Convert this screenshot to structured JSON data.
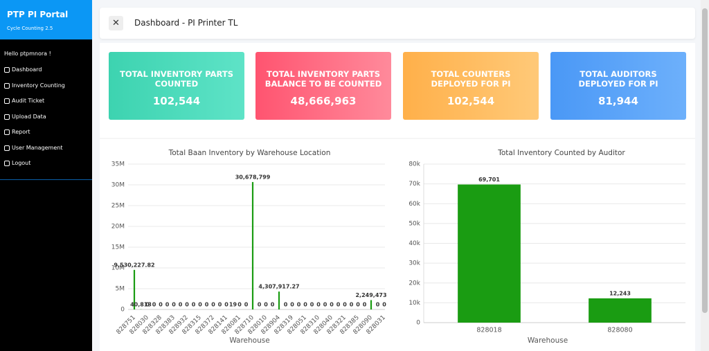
{
  "sidebar": {
    "brand": "PTP PI Portal",
    "version": "Cycle Counting 2.5",
    "greeting": "Hello ptpmnora !",
    "menu": [
      "Dashboard",
      "Inventory Counting",
      "Audit Ticket",
      "Upload Data",
      "Report",
      "User Management",
      "Logout"
    ]
  },
  "header": {
    "title": "Dashboard - PI Printer TL"
  },
  "cards": [
    {
      "label": "TOTAL INVENTORY PARTS COUNTED",
      "value": "102,544"
    },
    {
      "label": "TOTAL INVENTORY PARTS BALANCE TO BE COUNTED",
      "value": "48,666,963"
    },
    {
      "label": "TOTAL COUNTERS DEPLOYED FOR PI",
      "value": "102,544"
    },
    {
      "label": "TOTAL AUDITORS DEPLOYED FOR PI",
      "value": "81,944"
    }
  ],
  "chart_data": [
    {
      "type": "bar",
      "title": "Total Baan Inventory by Warehouse Location",
      "x_label": "Warehouse",
      "color": "#1a9c12",
      "grid": true,
      "categories": [
        "828751",
        null,
        "828030",
        null,
        "828328",
        null,
        "828383",
        null,
        "828932",
        null,
        "828315",
        null,
        "828372",
        null,
        "828141",
        null,
        "828081",
        null,
        "828710",
        null,
        "828010",
        null,
        "828904",
        null,
        "828319",
        null,
        "828051",
        null,
        "828310",
        null,
        "828040",
        null,
        "828321",
        null,
        "828385",
        null,
        "828090",
        null,
        "828031"
      ],
      "values": [
        9530227.82,
        40813,
        0,
        0,
        0,
        0,
        0,
        0,
        0,
        0,
        0,
        0,
        0,
        0,
        0,
        19,
        0,
        0,
        30678799,
        0,
        0,
        0,
        4307917.27,
        0,
        0,
        0,
        0,
        0,
        0,
        0,
        0,
        0,
        0,
        0,
        0,
        0,
        2249473,
        0,
        0
      ],
      "value_labels": [
        "9,530,227.82",
        "40,813",
        "0",
        "0",
        "0",
        "0",
        "0",
        "0",
        "0",
        "0",
        "0",
        "0",
        "0",
        "0",
        "0",
        "19",
        "0",
        "0",
        "30,678,799",
        "0",
        "0",
        "0",
        "4,307,917.27",
        "0",
        "0",
        "0",
        "0",
        "0",
        "0",
        "0",
        "0",
        "0",
        "0",
        "0",
        "0",
        "0",
        "2,249,473",
        "0",
        "0"
      ],
      "ylim": [
        0,
        35000000
      ],
      "yticks": [
        0,
        {
          "value": 5000000,
          "label": "5M"
        },
        {
          "value": 10000000,
          "label": "10M"
        },
        {
          "value": 15000000,
          "label": "15M"
        },
        {
          "value": 20000000,
          "label": "20M"
        },
        {
          "value": 25000000,
          "label": "25M"
        },
        {
          "value": 30000000,
          "label": "30M"
        },
        {
          "value": 35000000,
          "label": "35M"
        }
      ]
    },
    {
      "type": "bar",
      "title": "Total Inventory Counted by Auditor",
      "x_label": "Warehouse",
      "color": "#1a9c12",
      "grid": true,
      "categories": [
        "828018",
        "828080"
      ],
      "values": [
        69701,
        12243
      ],
      "value_labels": [
        "69,701",
        "12,243"
      ],
      "ylim": [
        0,
        80000
      ],
      "yticks": [
        0,
        {
          "value": 10000,
          "label": "10k"
        },
        {
          "value": 20000,
          "label": "20k"
        },
        {
          "value": 30000,
          "label": "30k"
        },
        {
          "value": 40000,
          "label": "40k"
        },
        {
          "value": 50000,
          "label": "50k"
        },
        {
          "value": 60000,
          "label": "60k"
        },
        {
          "value": 70000,
          "label": "70k"
        },
        {
          "value": 80000,
          "label": "80k"
        }
      ]
    }
  ]
}
